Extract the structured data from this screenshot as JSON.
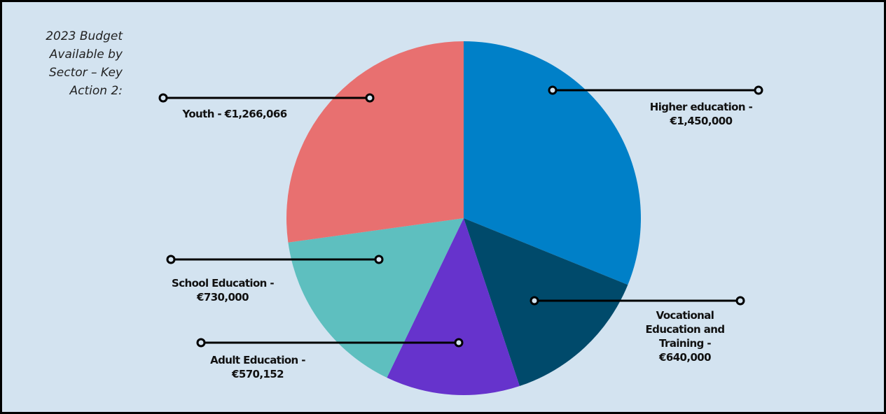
{
  "chart_data": {
    "type": "pie",
    "title": "2023 Budget Available by Sector – Key Action 2:",
    "values": [
      1450000,
      640000,
      570152,
      730000,
      1266066
    ],
    "value_labels": [
      "Higher education - €1,450,000",
      "Vocational Education and Training - €640,000",
      "Adult Education - €570,152",
      "School Education - €730,000",
      "Youth - €1,266,066"
    ],
    "colors": [
      "#0080c8",
      "#004a6b",
      "#6633cc",
      "#5ebfbf",
      "#e87070"
    ]
  }
}
